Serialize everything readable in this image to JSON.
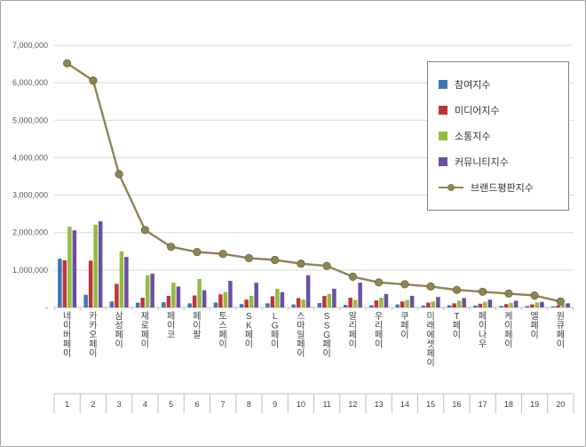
{
  "chart_data": {
    "type": "bar",
    "combo": "bar+line",
    "title": "",
    "categories": [
      "네이버페이",
      "카카오페이",
      "삼성페이",
      "제로페이",
      "페이코",
      "페이팔",
      "토스페이",
      "SK페이",
      "LG페이",
      "스마일페이",
      "SSG페이",
      "알리페이",
      "우리페이",
      "쿠페이",
      "미래에셋페이",
      "T페이",
      "페이나우",
      "케이페이",
      "엘페이",
      "원큐페이"
    ],
    "ranks": [
      "1",
      "2",
      "3",
      "4",
      "5",
      "6",
      "7",
      "8",
      "9",
      "10",
      "11",
      "12",
      "13",
      "14",
      "15",
      "16",
      "17",
      "18",
      "19",
      "20"
    ],
    "bar_series": [
      {
        "key": "participation",
        "name": "참여지수",
        "color": "#3f75b5",
        "values": [
          1300000,
          340000,
          160000,
          130000,
          140000,
          110000,
          130000,
          90000,
          110000,
          80000,
          120000,
          70000,
          60000,
          80000,
          50000,
          60000,
          50000,
          40000,
          40000,
          30000
        ]
      },
      {
        "key": "media",
        "name": "미디어지수",
        "color": "#bf3639",
        "values": [
          1260000,
          1250000,
          630000,
          260000,
          310000,
          320000,
          350000,
          210000,
          300000,
          250000,
          310000,
          260000,
          190000,
          160000,
          130000,
          110000,
          100000,
          90000,
          80000,
          60000
        ]
      },
      {
        "key": "communication",
        "name": "소통지수",
        "color": "#93bc42",
        "values": [
          2160000,
          2210000,
          1500000,
          860000,
          660000,
          760000,
          410000,
          310000,
          500000,
          210000,
          360000,
          200000,
          260000,
          200000,
          160000,
          180000,
          150000,
          120000,
          130000,
          90000
        ]
      },
      {
        "key": "community",
        "name": "커뮤니티지수",
        "color": "#6b4fa1",
        "values": [
          2060000,
          2300000,
          1350000,
          900000,
          560000,
          460000,
          710000,
          660000,
          410000,
          860000,
          500000,
          660000,
          360000,
          310000,
          280000,
          250000,
          210000,
          180000,
          150000,
          110000
        ]
      }
    ],
    "line_series": {
      "key": "brand-reputation",
      "name": "브랜드평판지수",
      "color": "#8e8454",
      "values": [
        6520000,
        6060000,
        3560000,
        2070000,
        1620000,
        1480000,
        1430000,
        1320000,
        1270000,
        1170000,
        1110000,
        820000,
        670000,
        620000,
        560000,
        470000,
        420000,
        370000,
        320000,
        160000
      ]
    },
    "y_axis": {
      "min": 0,
      "max": 7000000,
      "step": 1000000,
      "tick_labels": [
        "-",
        "1,000,000",
        "2,000,000",
        "3,000,000",
        "4,000,000",
        "5,000,000",
        "6,000,000",
        "7,000,000"
      ]
    },
    "grid": true,
    "legend_position": "top-right"
  },
  "colors": {
    "gridline": "#d9d9d9",
    "axis": "#bfbfbf",
    "tick_text": "#595959",
    "category_text": "#404040",
    "legend_border": "#7f7f7f"
  }
}
